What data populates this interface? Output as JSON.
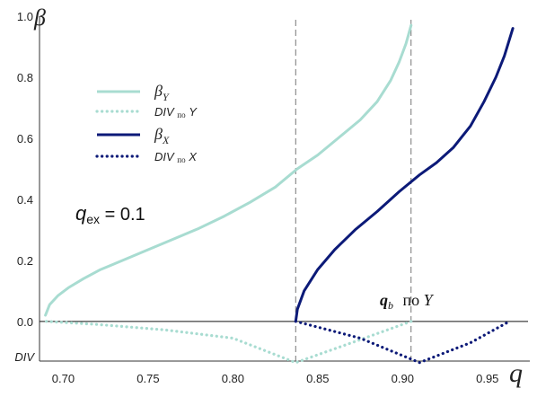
{
  "chart_data": {
    "type": "line",
    "ylabel": "β",
    "xlabel": "q",
    "xlim": [
      0.686,
      0.975
    ],
    "ylim": [
      -0.13,
      1.0
    ],
    "x_ticks": [
      "0.70",
      "0.75",
      "0.80",
      "0.85",
      "0.90",
      "0.95"
    ],
    "y_ticks": [
      "0.0",
      "0.2",
      "0.4",
      "0.6",
      "0.8",
      "1.0"
    ],
    "div_tick_label": "DIV",
    "colors": {
      "light": "#a8dcd1",
      "dark": "#0c1a78"
    },
    "series": [
      {
        "key": "beta_y",
        "legend": "β",
        "legend_sub": "Y",
        "color": "#a8dcd1",
        "style": "solid",
        "points": [
          [
            0.6895,
            0.02
          ],
          [
            0.692,
            0.055
          ],
          [
            0.697,
            0.085
          ],
          [
            0.703,
            0.11
          ],
          [
            0.712,
            0.14
          ],
          [
            0.722,
            0.17
          ],
          [
            0.735,
            0.2
          ],
          [
            0.75,
            0.235
          ],
          [
            0.765,
            0.27
          ],
          [
            0.78,
            0.305
          ],
          [
            0.795,
            0.345
          ],
          [
            0.81,
            0.39
          ],
          [
            0.825,
            0.44
          ],
          [
            0.838,
            0.5
          ],
          [
            0.85,
            0.545
          ],
          [
            0.862,
            0.6
          ],
          [
            0.875,
            0.66
          ],
          [
            0.885,
            0.72
          ],
          [
            0.893,
            0.79
          ],
          [
            0.898,
            0.85
          ],
          [
            0.902,
            0.91
          ],
          [
            0.905,
            0.97
          ]
        ]
      },
      {
        "key": "div_y",
        "legend": "DIV",
        "legend_mid": "по",
        "legend_tail": "Y",
        "color": "#a8dcd1",
        "style": "dotted",
        "points": [
          [
            0.69,
            0.0
          ],
          [
            0.72,
            -0.01
          ],
          [
            0.76,
            -0.028
          ],
          [
            0.8,
            -0.055
          ],
          [
            0.837,
            -0.135
          ],
          [
            0.87,
            -0.07
          ],
          [
            0.905,
            0.0
          ]
        ]
      },
      {
        "key": "beta_x",
        "legend": "β",
        "legend_sub": "X",
        "color": "#0c1a78",
        "style": "solid",
        "points": [
          [
            0.837,
            0.0
          ],
          [
            0.838,
            0.04
          ],
          [
            0.842,
            0.1
          ],
          [
            0.85,
            0.17
          ],
          [
            0.86,
            0.235
          ],
          [
            0.872,
            0.3
          ],
          [
            0.885,
            0.36
          ],
          [
            0.898,
            0.425
          ],
          [
            0.91,
            0.48
          ],
          [
            0.92,
            0.52
          ],
          [
            0.93,
            0.57
          ],
          [
            0.94,
            0.64
          ],
          [
            0.948,
            0.72
          ],
          [
            0.955,
            0.8
          ],
          [
            0.96,
            0.87
          ],
          [
            0.965,
            0.96
          ]
        ]
      },
      {
        "key": "div_x",
        "legend": "DIV",
        "legend_mid": "по",
        "legend_tail": "X",
        "color": "#0c1a78",
        "style": "dotted",
        "points": [
          [
            0.837,
            0.0
          ],
          [
            0.875,
            -0.055
          ],
          [
            0.91,
            -0.135
          ],
          [
            0.94,
            -0.07
          ],
          [
            0.963,
            0.0
          ]
        ]
      }
    ],
    "vlines": [
      0.837,
      0.905
    ],
    "annotation_qex": {
      "lhs": "q",
      "sub": "ex",
      "rhs": " = 0.1"
    },
    "annotation_qb": {
      "lhs": "q",
      "sub": "b",
      "rhs": "по Y"
    }
  }
}
